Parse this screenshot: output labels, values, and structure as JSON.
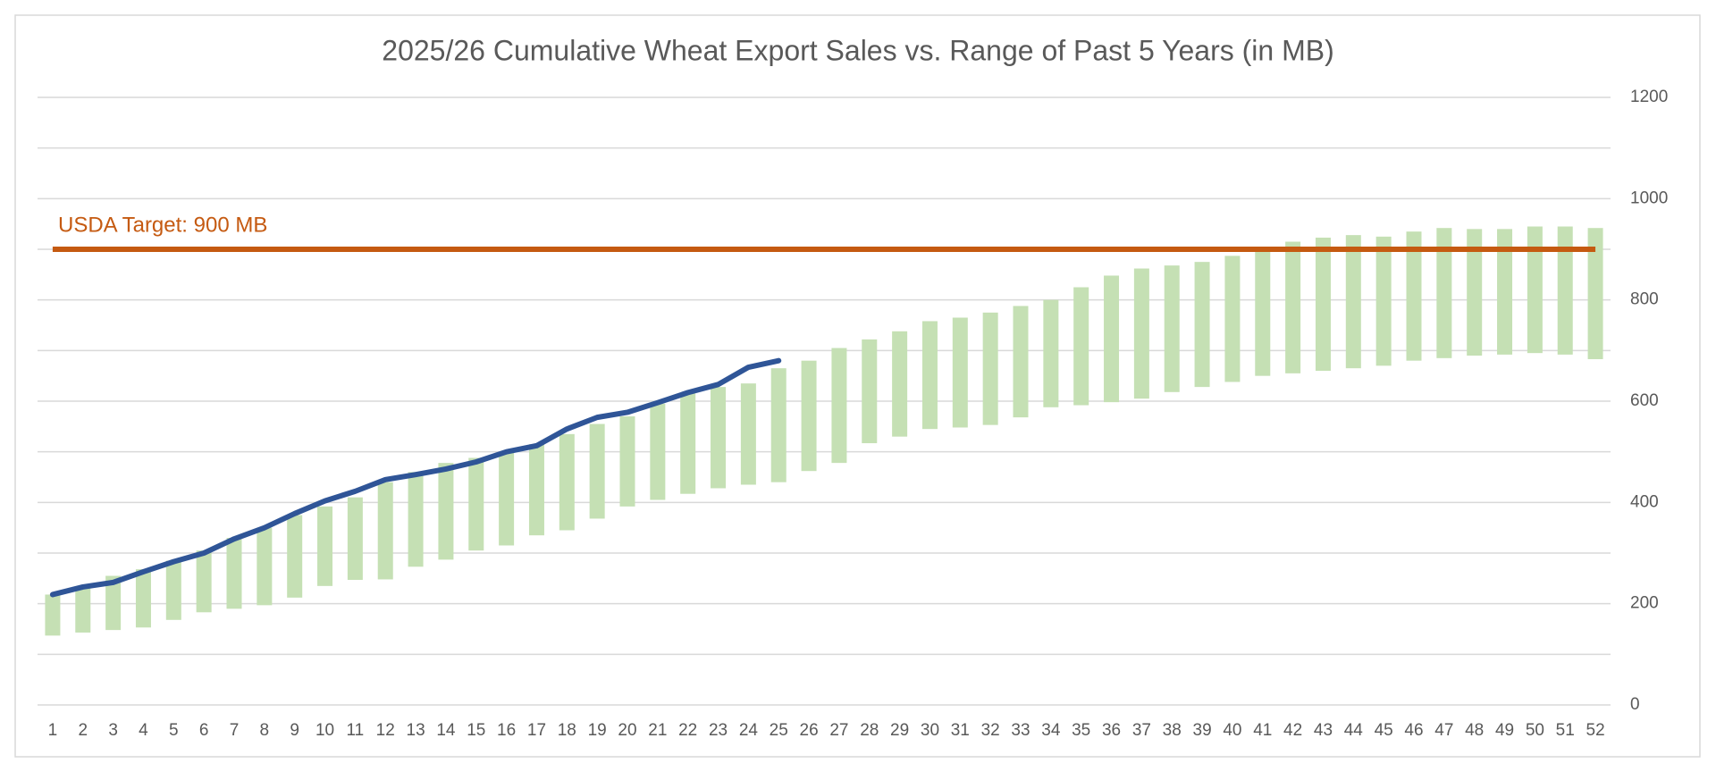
{
  "chart_data": {
    "type": "combo",
    "title": "2025/26 Cumulative Wheat Export Sales vs. Range of Past 5 Years (in MB)",
    "categories": [
      1,
      2,
      3,
      4,
      5,
      6,
      7,
      8,
      9,
      10,
      11,
      12,
      13,
      14,
      15,
      16,
      17,
      18,
      19,
      20,
      21,
      22,
      23,
      24,
      25,
      26,
      27,
      28,
      29,
      30,
      31,
      32,
      33,
      34,
      35,
      36,
      37,
      38,
      39,
      40,
      41,
      42,
      43,
      44,
      45,
      46,
      47,
      48,
      49,
      50,
      51,
      52
    ],
    "series": [
      {
        "type": "range",
        "color": "#c5e0b4",
        "low": [
          137,
          143,
          148,
          153,
          168,
          183,
          190,
          197,
          212,
          235,
          247,
          248,
          273,
          287,
          305,
          315,
          335,
          345,
          368,
          392,
          405,
          417,
          428,
          435,
          440,
          462,
          478,
          517,
          530,
          545,
          548,
          553,
          568,
          588,
          592,
          598,
          605,
          618,
          628,
          638,
          650,
          655,
          660,
          665,
          670,
          680,
          685,
          690,
          692,
          695,
          692,
          683
        ],
        "high": [
          218,
          232,
          255,
          268,
          285,
          305,
          330,
          350,
          375,
          392,
          410,
          440,
          460,
          478,
          488,
          500,
          515,
          535,
          555,
          570,
          595,
          615,
          628,
          635,
          665,
          680,
          705,
          722,
          738,
          758,
          765,
          775,
          788,
          800,
          825,
          848,
          862,
          868,
          875,
          887,
          900,
          915,
          923,
          928,
          925,
          935,
          942,
          940,
          940,
          945,
          945,
          942
        ]
      },
      {
        "type": "line",
        "color": "#2f5597",
        "values": [
          218,
          233,
          242,
          263,
          283,
          300,
          328,
          350,
          378,
          403,
          422,
          445,
          455,
          466,
          480,
          500,
          512,
          545,
          568,
          578,
          597,
          617,
          633,
          667,
          680,
          null,
          null,
          null,
          null,
          null,
          null,
          null,
          null,
          null,
          null,
          null,
          null,
          null,
          null,
          null,
          null,
          null,
          null,
          null,
          null,
          null,
          null,
          null,
          null,
          null,
          null,
          null
        ]
      }
    ],
    "target": {
      "text": "USDA Target: 900 MB",
      "value": 900,
      "color": "#c55a11"
    },
    "ylim": [
      0,
      1200
    ],
    "yticks": [
      0,
      200,
      400,
      600,
      800,
      1000,
      1200
    ],
    "minor_yticks": [
      100,
      300,
      500,
      700,
      900,
      1100
    ],
    "y_axis_side": "right",
    "grid": true
  }
}
